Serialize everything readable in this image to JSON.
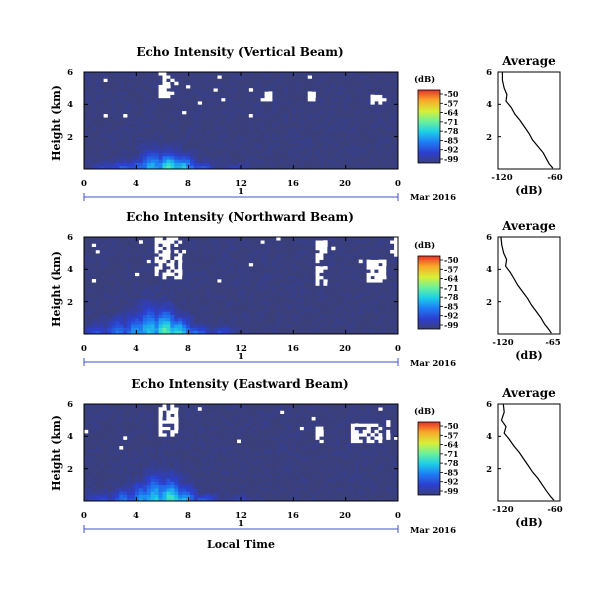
{
  "figure": {
    "xlabel": "Local Time",
    "month_label": "Mar 2016",
    "day_label": "1",
    "x_ticks": [
      "0",
      "4",
      "8",
      "12",
      "16",
      "20",
      "0"
    ],
    "y_ticks": [
      "6",
      "4",
      "2"
    ],
    "cb_unit": "(dB)",
    "cb_ticks": [
      "-50",
      "-57",
      "-64",
      "-71",
      "-78",
      "-85",
      "-92",
      "-99"
    ],
    "avg_title": "Average",
    "avg_xlabel": "(dB)",
    "avg_y_ticks": [
      "6",
      "4",
      "2"
    ]
  },
  "panels": [
    {
      "title": "Echo Intensity (Vertical Beam)",
      "ylabel": "Height (km)",
      "avg_x_ticks": [
        "-120",
        "-60"
      ]
    },
    {
      "title": "Echo Intensity (Northward Beam)",
      "ylabel": "Height (km)",
      "avg_x_ticks": [
        "-120",
        "-65"
      ]
    },
    {
      "title": "Echo Intensity (Eastward Beam)",
      "ylabel": "Height (km)",
      "avg_x_ticks": [
        "-120",
        "-60"
      ]
    }
  ],
  "colors": {
    "background": "#3a3f7a",
    "colormap": [
      "#3a3f7a",
      "#2c3fd0",
      "#1e7ff5",
      "#1ed0e6",
      "#6ef09a",
      "#d8ef3a",
      "#f8a82a",
      "#e8302a"
    ]
  },
  "chart_data": [
    {
      "type": "heatmap",
      "title": "Echo Intensity (Vertical Beam)",
      "xlabel": "Local Time",
      "ylabel": "Height (km)",
      "xlim": [
        0,
        24
      ],
      "ylim": [
        0,
        6
      ],
      "clim": [
        -99,
        -50
      ],
      "cb_ticks": [
        -50,
        -57,
        -64,
        -71,
        -78,
        -85,
        -92,
        -99
      ],
      "hot_spots": [
        [
          1.5,
          0.3,
          -92
        ],
        [
          3.0,
          0.4,
          -88
        ],
        [
          4.2,
          0.5,
          -86
        ],
        [
          5.2,
          0.9,
          -80
        ],
        [
          6.5,
          0.8,
          -74
        ],
        [
          7.6,
          0.6,
          -78
        ],
        [
          9.0,
          0.3,
          -88
        ],
        [
          11.5,
          0.2,
          -93
        ]
      ],
      "gaps": [
        [
          5.8,
          6.8,
          4.5,
          6.0
        ],
        [
          13.5,
          14.5,
          4.2,
          4.8
        ],
        [
          17.0,
          17.8,
          4.3,
          4.8
        ],
        [
          22.0,
          23.2,
          4.0,
          4.6
        ]
      ]
    },
    {
      "type": "line",
      "title": "Average",
      "xlabel": "(dB)",
      "xlim": [
        -125,
        -55
      ],
      "ylim": [
        0,
        6
      ],
      "x": [
        -120,
        -120,
        -118,
        -115,
        -116,
        -110,
        -106,
        -100,
        -95,
        -90,
        -86,
        -80,
        -74,
        -70,
        -67,
        -63
      ],
      "y": [
        6.0,
        5.5,
        5.0,
        4.6,
        4.2,
        3.8,
        3.4,
        3.0,
        2.6,
        2.2,
        1.8,
        1.4,
        1.0,
        0.6,
        0.3,
        0.05
      ]
    },
    {
      "type": "heatmap",
      "title": "Echo Intensity (Northward Beam)",
      "xlabel": "Local Time",
      "ylabel": "Height (km)",
      "xlim": [
        0,
        24
      ],
      "ylim": [
        0,
        6
      ],
      "clim": [
        -99,
        -50
      ],
      "cb_ticks": [
        -50,
        -57,
        -64,
        -71,
        -78,
        -85,
        -92,
        -99
      ],
      "hot_spots": [
        [
          1.0,
          0.5,
          -90
        ],
        [
          2.6,
          0.8,
          -86
        ],
        [
          4.0,
          1.0,
          -82
        ],
        [
          5.0,
          1.4,
          -78
        ],
        [
          6.2,
          1.2,
          -72
        ],
        [
          7.2,
          0.8,
          -76
        ],
        [
          8.6,
          0.4,
          -86
        ],
        [
          10.5,
          0.3,
          -90
        ]
      ],
      "gaps": [
        [
          5.5,
          7.6,
          3.5,
          6.0
        ],
        [
          17.6,
          18.6,
          3.0,
          5.8
        ],
        [
          21.5,
          23.0,
          3.2,
          4.5
        ],
        [
          23.4,
          24.0,
          4.8,
          6.0
        ]
      ]
    },
    {
      "type": "line",
      "title": "Average",
      "xlabel": "(dB)",
      "xlim": [
        -125,
        -60
      ],
      "ylim": [
        0,
        6
      ],
      "x": [
        -122,
        -121,
        -119,
        -116,
        -117,
        -112,
        -108,
        -104,
        -99,
        -94,
        -90,
        -85,
        -80,
        -76,
        -72,
        -69
      ],
      "y": [
        6.0,
        5.5,
        5.0,
        4.6,
        4.2,
        3.8,
        3.4,
        3.0,
        2.6,
        2.2,
        1.8,
        1.4,
        1.0,
        0.6,
        0.3,
        0.05
      ]
    },
    {
      "type": "heatmap",
      "title": "Echo Intensity (Eastward Beam)",
      "xlabel": "Local Time",
      "ylabel": "Height (km)",
      "xlim": [
        0,
        24
      ],
      "ylim": [
        0,
        6
      ],
      "clim": [
        -99,
        -50
      ],
      "cb_ticks": [
        -50,
        -57,
        -64,
        -71,
        -78,
        -85,
        -92,
        -99
      ],
      "hot_spots": [
        [
          1.2,
          0.4,
          -90
        ],
        [
          3.0,
          0.6,
          -86
        ],
        [
          4.4,
          0.9,
          -82
        ],
        [
          5.4,
          1.3,
          -78
        ],
        [
          6.6,
          1.1,
          -74
        ],
        [
          7.6,
          0.7,
          -80
        ],
        [
          9.2,
          0.3,
          -88
        ],
        [
          12.0,
          0.2,
          -93
        ]
      ],
      "gaps": [
        [
          5.6,
          7.2,
          4.0,
          6.0
        ],
        [
          17.6,
          18.2,
          3.6,
          4.6
        ],
        [
          20.5,
          23.5,
          3.6,
          4.8
        ]
      ]
    },
    {
      "type": "line",
      "title": "Average",
      "xlabel": "(dB)",
      "xlim": [
        -125,
        -55
      ],
      "ylim": [
        0,
        6
      ],
      "x": [
        -119,
        -118,
        -121,
        -116,
        -118,
        -112,
        -107,
        -101,
        -96,
        -91,
        -86,
        -80,
        -75,
        -70,
        -66,
        -62
      ],
      "y": [
        6.0,
        5.5,
        5.0,
        4.6,
        4.2,
        3.8,
        3.4,
        3.0,
        2.6,
        2.2,
        1.8,
        1.4,
        1.0,
        0.6,
        0.3,
        0.05
      ]
    }
  ]
}
